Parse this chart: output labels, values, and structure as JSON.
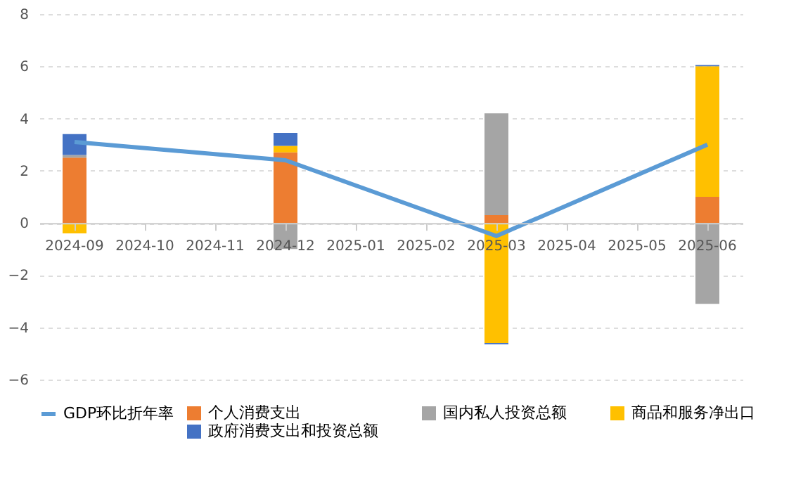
{
  "chart_data": {
    "type": "bar",
    "stacked": true,
    "categories": [
      "2024-09",
      "2024-10",
      "2024-11",
      "2024-12",
      "2025-01",
      "2025-02",
      "2025-03",
      "2025-04",
      "2025-05",
      "2025-06"
    ],
    "series": [
      {
        "name": "个人消费支出",
        "color": "#ed7d31",
        "values": [
          2.5,
          null,
          null,
          2.7,
          null,
          null,
          0.3,
          null,
          null,
          1.0
        ]
      },
      {
        "name": "国内私人投资总额",
        "color": "#a5a5a5",
        "values": [
          0.1,
          null,
          null,
          -1.0,
          null,
          null,
          3.9,
          null,
          null,
          -3.1
        ]
      },
      {
        "name": "商品和服务净出口",
        "color": "#ffc000",
        "values": [
          -0.4,
          null,
          null,
          0.25,
          null,
          null,
          -4.6,
          null,
          null,
          5.0
        ]
      },
      {
        "name": "政府消费支出和投资总额",
        "color": "#4472c4",
        "values": [
          0.8,
          null,
          null,
          0.5,
          null,
          null,
          -0.05,
          null,
          null,
          0.05
        ]
      },
      {
        "name": "GDP环比折年率",
        "color": "#5b9bd5",
        "type": "line",
        "values": [
          3.1,
          null,
          null,
          2.4,
          null,
          null,
          -0.5,
          null,
          null,
          3.0
        ]
      }
    ],
    "ylim": [
      -6,
      8
    ],
    "yticks": [
      -6,
      -4,
      -2,
      0,
      2,
      4,
      6,
      8
    ],
    "grid": "y",
    "legend": "bottom"
  }
}
